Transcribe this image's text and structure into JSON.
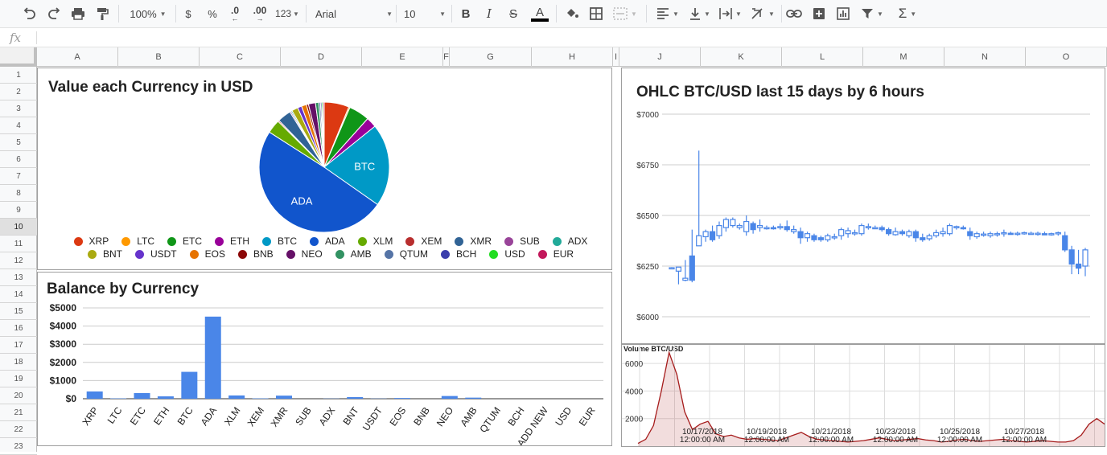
{
  "toolbar": {
    "zoom": "100%",
    "currency_symbol": "$",
    "percent_symbol": "%",
    "decrease_decimal": ".0",
    "increase_decimal": ".00",
    "more_formats": "123",
    "font_name": "Arial",
    "font_size": "10",
    "bold": "B",
    "italic": "I",
    "strikethrough": "S",
    "text_color_letter": "A"
  },
  "formula_bar": {
    "fx_label": "fx",
    "value": ""
  },
  "columns": [
    {
      "label": "A"
    },
    {
      "label": "B"
    },
    {
      "label": "C"
    },
    {
      "label": "D"
    },
    {
      "label": "E"
    },
    {
      "label": "F"
    },
    {
      "label": "G"
    },
    {
      "label": "H"
    },
    {
      "label": "I"
    },
    {
      "label": "J"
    },
    {
      "label": "K"
    },
    {
      "label": "L"
    },
    {
      "label": "M"
    },
    {
      "label": "N"
    },
    {
      "label": "O"
    }
  ],
  "rows": [
    "1",
    "2",
    "3",
    "4",
    "5",
    "6",
    "7",
    "8",
    "9",
    "10",
    "11",
    "12",
    "13",
    "14",
    "15",
    "16",
    "17",
    "18",
    "19",
    "20",
    "21",
    "22",
    "23"
  ],
  "selected_row": "10",
  "chart_data": [
    {
      "type": "pie",
      "title": "Value each Currency in USD",
      "legend_position": "bottom",
      "slice_labels": {
        "BTC": "BTC",
        "ADA": "ADA"
      },
      "slices": [
        {
          "name": "XRP",
          "value": 6.0,
          "color": "#dc3912"
        },
        {
          "name": "LTC",
          "value": 0.3,
          "color": "#ff9900"
        },
        {
          "name": "ETC",
          "value": 5.0,
          "color": "#109618"
        },
        {
          "name": "ETH",
          "value": 2.5,
          "color": "#990099"
        },
        {
          "name": "BTC",
          "value": 20.0,
          "color": "#0099c6"
        },
        {
          "name": "ADA",
          "value": 48.0,
          "color": "#1155cc"
        },
        {
          "name": "XLM",
          "value": 3.3,
          "color": "#66aa00"
        },
        {
          "name": "XEM",
          "value": 0.3,
          "color": "#b82e2e"
        },
        {
          "name": "XMR",
          "value": 3.3,
          "color": "#316395"
        },
        {
          "name": "SUB",
          "value": 0.3,
          "color": "#994499"
        },
        {
          "name": "ADX",
          "value": 0.3,
          "color": "#22aa99"
        },
        {
          "name": "BNT",
          "value": 1.5,
          "color": "#aaaa11"
        },
        {
          "name": "USDT",
          "value": 1.0,
          "color": "#6633cc"
        },
        {
          "name": "EOS",
          "value": 1.2,
          "color": "#e67300"
        },
        {
          "name": "BNB",
          "value": 0.5,
          "color": "#8b0707"
        },
        {
          "name": "NEO",
          "value": 1.7,
          "color": "#651067"
        },
        {
          "name": "AMB",
          "value": 0.8,
          "color": "#329262"
        },
        {
          "name": "QTUM",
          "value": 0.4,
          "color": "#5574a6"
        },
        {
          "name": "BCH",
          "value": 0.3,
          "color": "#3b3eac"
        },
        {
          "name": "USD",
          "value": 0.3,
          "color": "#22dd22"
        },
        {
          "name": "EUR",
          "value": 0.3,
          "color": "#c2185b"
        }
      ]
    },
    {
      "type": "bar",
      "title": "Balance by Currency",
      "color": "#4a86e8",
      "ylim": [
        0,
        5000
      ],
      "yticks": [
        0,
        1000,
        2000,
        3000,
        4000,
        5000
      ],
      "ytick_labels": [
        "$0",
        "$1000",
        "$2000",
        "$3000",
        "$4000",
        "$5000"
      ],
      "categories": [
        "XRP",
        "LTC",
        "ETC",
        "ETH",
        "BTC",
        "ADA",
        "XLM",
        "XEM",
        "XMR",
        "SUB",
        "ADX",
        "BNT",
        "USDT",
        "EOS",
        "BNB",
        "NEO",
        "AMB",
        "QTUM",
        "BCH",
        "ADD NEW",
        "USD",
        "EUR"
      ],
      "values": [
        400,
        20,
        310,
        130,
        1480,
        4520,
        180,
        20,
        170,
        0,
        10,
        90,
        10,
        40,
        0,
        150,
        60,
        0,
        0,
        0,
        0,
        0
      ]
    },
    {
      "type": "candlestick",
      "title": "OHLC BTC/USD last 15 days by 6 hours",
      "ylim": [
        6000,
        7000
      ],
      "yticks": [
        6000,
        6250,
        6500,
        6750,
        7000
      ],
      "ytick_labels": [
        "$6000",
        "$6250",
        "$6500",
        "$6750",
        "$7000"
      ],
      "color": "#4a86e8",
      "candles": [
        [
          6240,
          6245,
          6238,
          6242
        ],
        [
          6225,
          6245,
          6160,
          6245
        ],
        [
          6180,
          6280,
          6175,
          6190
        ],
        [
          6300,
          6430,
          6170,
          6180
        ],
        [
          6350,
          6820,
          6350,
          6400
        ],
        [
          6395,
          6430,
          6370,
          6420
        ],
        [
          6420,
          6450,
          6370,
          6380
        ],
        [
          6400,
          6470,
          6385,
          6450
        ],
        [
          6440,
          6490,
          6420,
          6480
        ],
        [
          6450,
          6490,
          6440,
          6480
        ],
        [
          6440,
          6460,
          6430,
          6450
        ],
        [
          6420,
          6500,
          6400,
          6470
        ],
        [
          6460,
          6470,
          6410,
          6430
        ],
        [
          6440,
          6480,
          6420,
          6450
        ],
        [
          6440,
          6450,
          6430,
          6440
        ],
        [
          6440,
          6450,
          6430,
          6435
        ],
        [
          6440,
          6460,
          6430,
          6445
        ],
        [
          6445,
          6475,
          6420,
          6430
        ],
        [
          6420,
          6450,
          6410,
          6430
        ],
        [
          6420,
          6440,
          6360,
          6390
        ],
        [
          6390,
          6420,
          6370,
          6410
        ],
        [
          6400,
          6410,
          6370,
          6380
        ],
        [
          6390,
          6400,
          6370,
          6380
        ],
        [
          6380,
          6410,
          6370,
          6400
        ],
        [
          6395,
          6410,
          6380,
          6395
        ],
        [
          6400,
          6440,
          6380,
          6430
        ],
        [
          6410,
          6440,
          6390,
          6425
        ],
        [
          6410,
          6430,
          6400,
          6415
        ],
        [
          6410,
          6460,
          6400,
          6450
        ],
        [
          6445,
          6460,
          6430,
          6445
        ],
        [
          6440,
          6450,
          6435,
          6440
        ],
        [
          6440,
          6450,
          6420,
          6430
        ],
        [
          6430,
          6440,
          6400,
          6410
        ],
        [
          6405,
          6440,
          6400,
          6420
        ],
        [
          6420,
          6430,
          6400,
          6410
        ],
        [
          6400,
          6430,
          6390,
          6420
        ],
        [
          6420,
          6430,
          6370,
          6390
        ],
        [
          6390,
          6410,
          6370,
          6380
        ],
        [
          6385,
          6410,
          6375,
          6400
        ],
        [
          6400,
          6430,
          6390,
          6415
        ],
        [
          6410,
          6440,
          6395,
          6420
        ],
        [
          6410,
          6460,
          6400,
          6450
        ],
        [
          6440,
          6450,
          6430,
          6445
        ],
        [
          6440,
          6450,
          6430,
          6435
        ],
        [
          6420,
          6440,
          6380,
          6400
        ],
        [
          6395,
          6420,
          6385,
          6410
        ],
        [
          6405,
          6420,
          6395,
          6408
        ],
        [
          6400,
          6420,
          6390,
          6410
        ],
        [
          6405,
          6420,
          6395,
          6410
        ],
        [
          6410,
          6430,
          6395,
          6415
        ],
        [
          6412,
          6420,
          6405,
          6410
        ],
        [
          6410,
          6420,
          6400,
          6412
        ],
        [
          6410,
          6420,
          6405,
          6415
        ],
        [
          6410,
          6420,
          6405,
          6412
        ],
        [
          6410,
          6420,
          6400,
          6412
        ],
        [
          6410,
          6420,
          6405,
          6408
        ],
        [
          6405,
          6415,
          6400,
          6410
        ],
        [
          6410,
          6420,
          6400,
          6415
        ],
        [
          6400,
          6420,
          6320,
          6330
        ],
        [
          6330,
          6350,
          6210,
          6260
        ],
        [
          6260,
          6330,
          6210,
          6240
        ],
        [
          6250,
          6340,
          6200,
          6330
        ]
      ]
    },
    {
      "type": "area",
      "title": "Volume BTC/USD",
      "color": "#a61c1c",
      "ylim": [
        0,
        7000
      ],
      "yticks": [
        2000,
        4000,
        6000
      ],
      "ytick_labels": [
        "2000",
        "4000",
        "6000"
      ],
      "x_tick_labels": [
        [
          "10/17/2018",
          "12:00:00 AM"
        ],
        [
          "10/19/2018",
          "12:00:00 AM"
        ],
        [
          "10/21/2018",
          "12:00:00 AM"
        ],
        [
          "10/23/2018",
          "12:00:00 AM"
        ],
        [
          "10/25/2018",
          "12:00:00 AM"
        ],
        [
          "10/27/2018",
          "12:00:00 AM"
        ]
      ],
      "values": [
        200,
        500,
        1500,
        4000,
        6800,
        5200,
        2500,
        1200,
        1600,
        1800,
        900,
        700,
        800,
        600,
        500,
        550,
        500,
        450,
        400,
        600,
        800,
        1000,
        700,
        500,
        450,
        400,
        350,
        300,
        350,
        400,
        500,
        600,
        500,
        400,
        450,
        500,
        550,
        450,
        400,
        300,
        350,
        450,
        500,
        400,
        350,
        400,
        450,
        500,
        400,
        350,
        300,
        350,
        400,
        350,
        300,
        300,
        400,
        800,
        1600,
        2000,
        1600
      ]
    }
  ]
}
